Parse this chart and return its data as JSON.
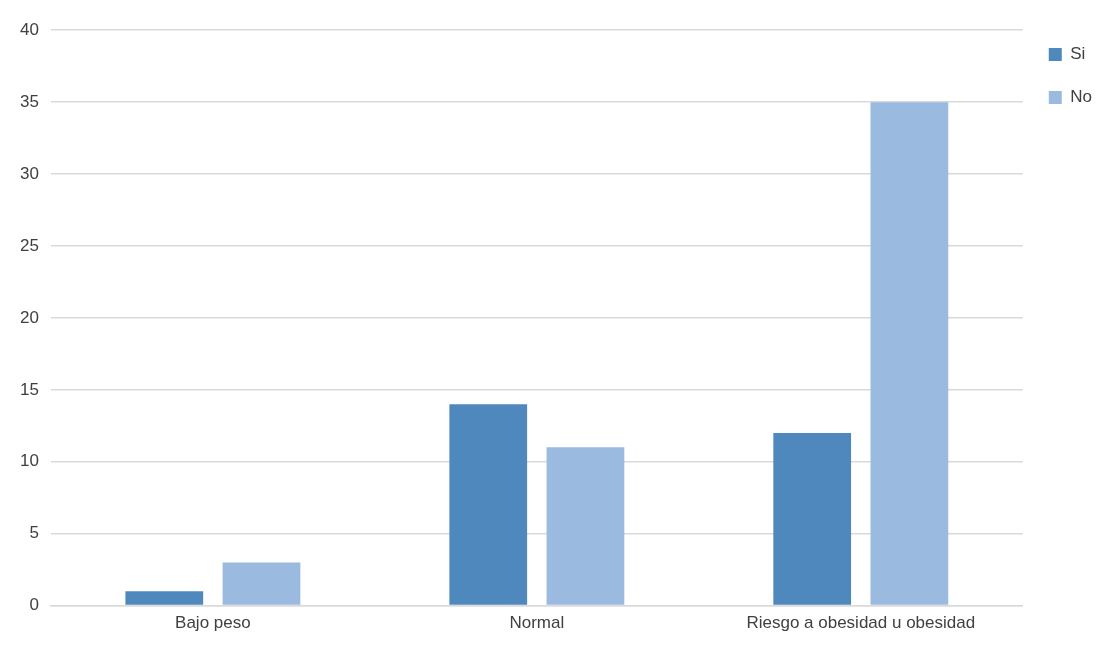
{
  "chart_data": {
    "type": "bar",
    "categories": [
      "Bajo peso",
      "Normal",
      "Riesgo a obesidad u obesidad"
    ],
    "series": [
      {
        "name": "Si",
        "color": "#4f88bd",
        "values": [
          1,
          14,
          12
        ]
      },
      {
        "name": "No",
        "color": "#9abae0",
        "values": [
          3,
          11,
          35
        ]
      }
    ],
    "ylim": [
      0,
      40
    ],
    "yticks": [
      0,
      5,
      10,
      15,
      20,
      25,
      30,
      35,
      40
    ],
    "grid": "y",
    "legend": "right"
  }
}
